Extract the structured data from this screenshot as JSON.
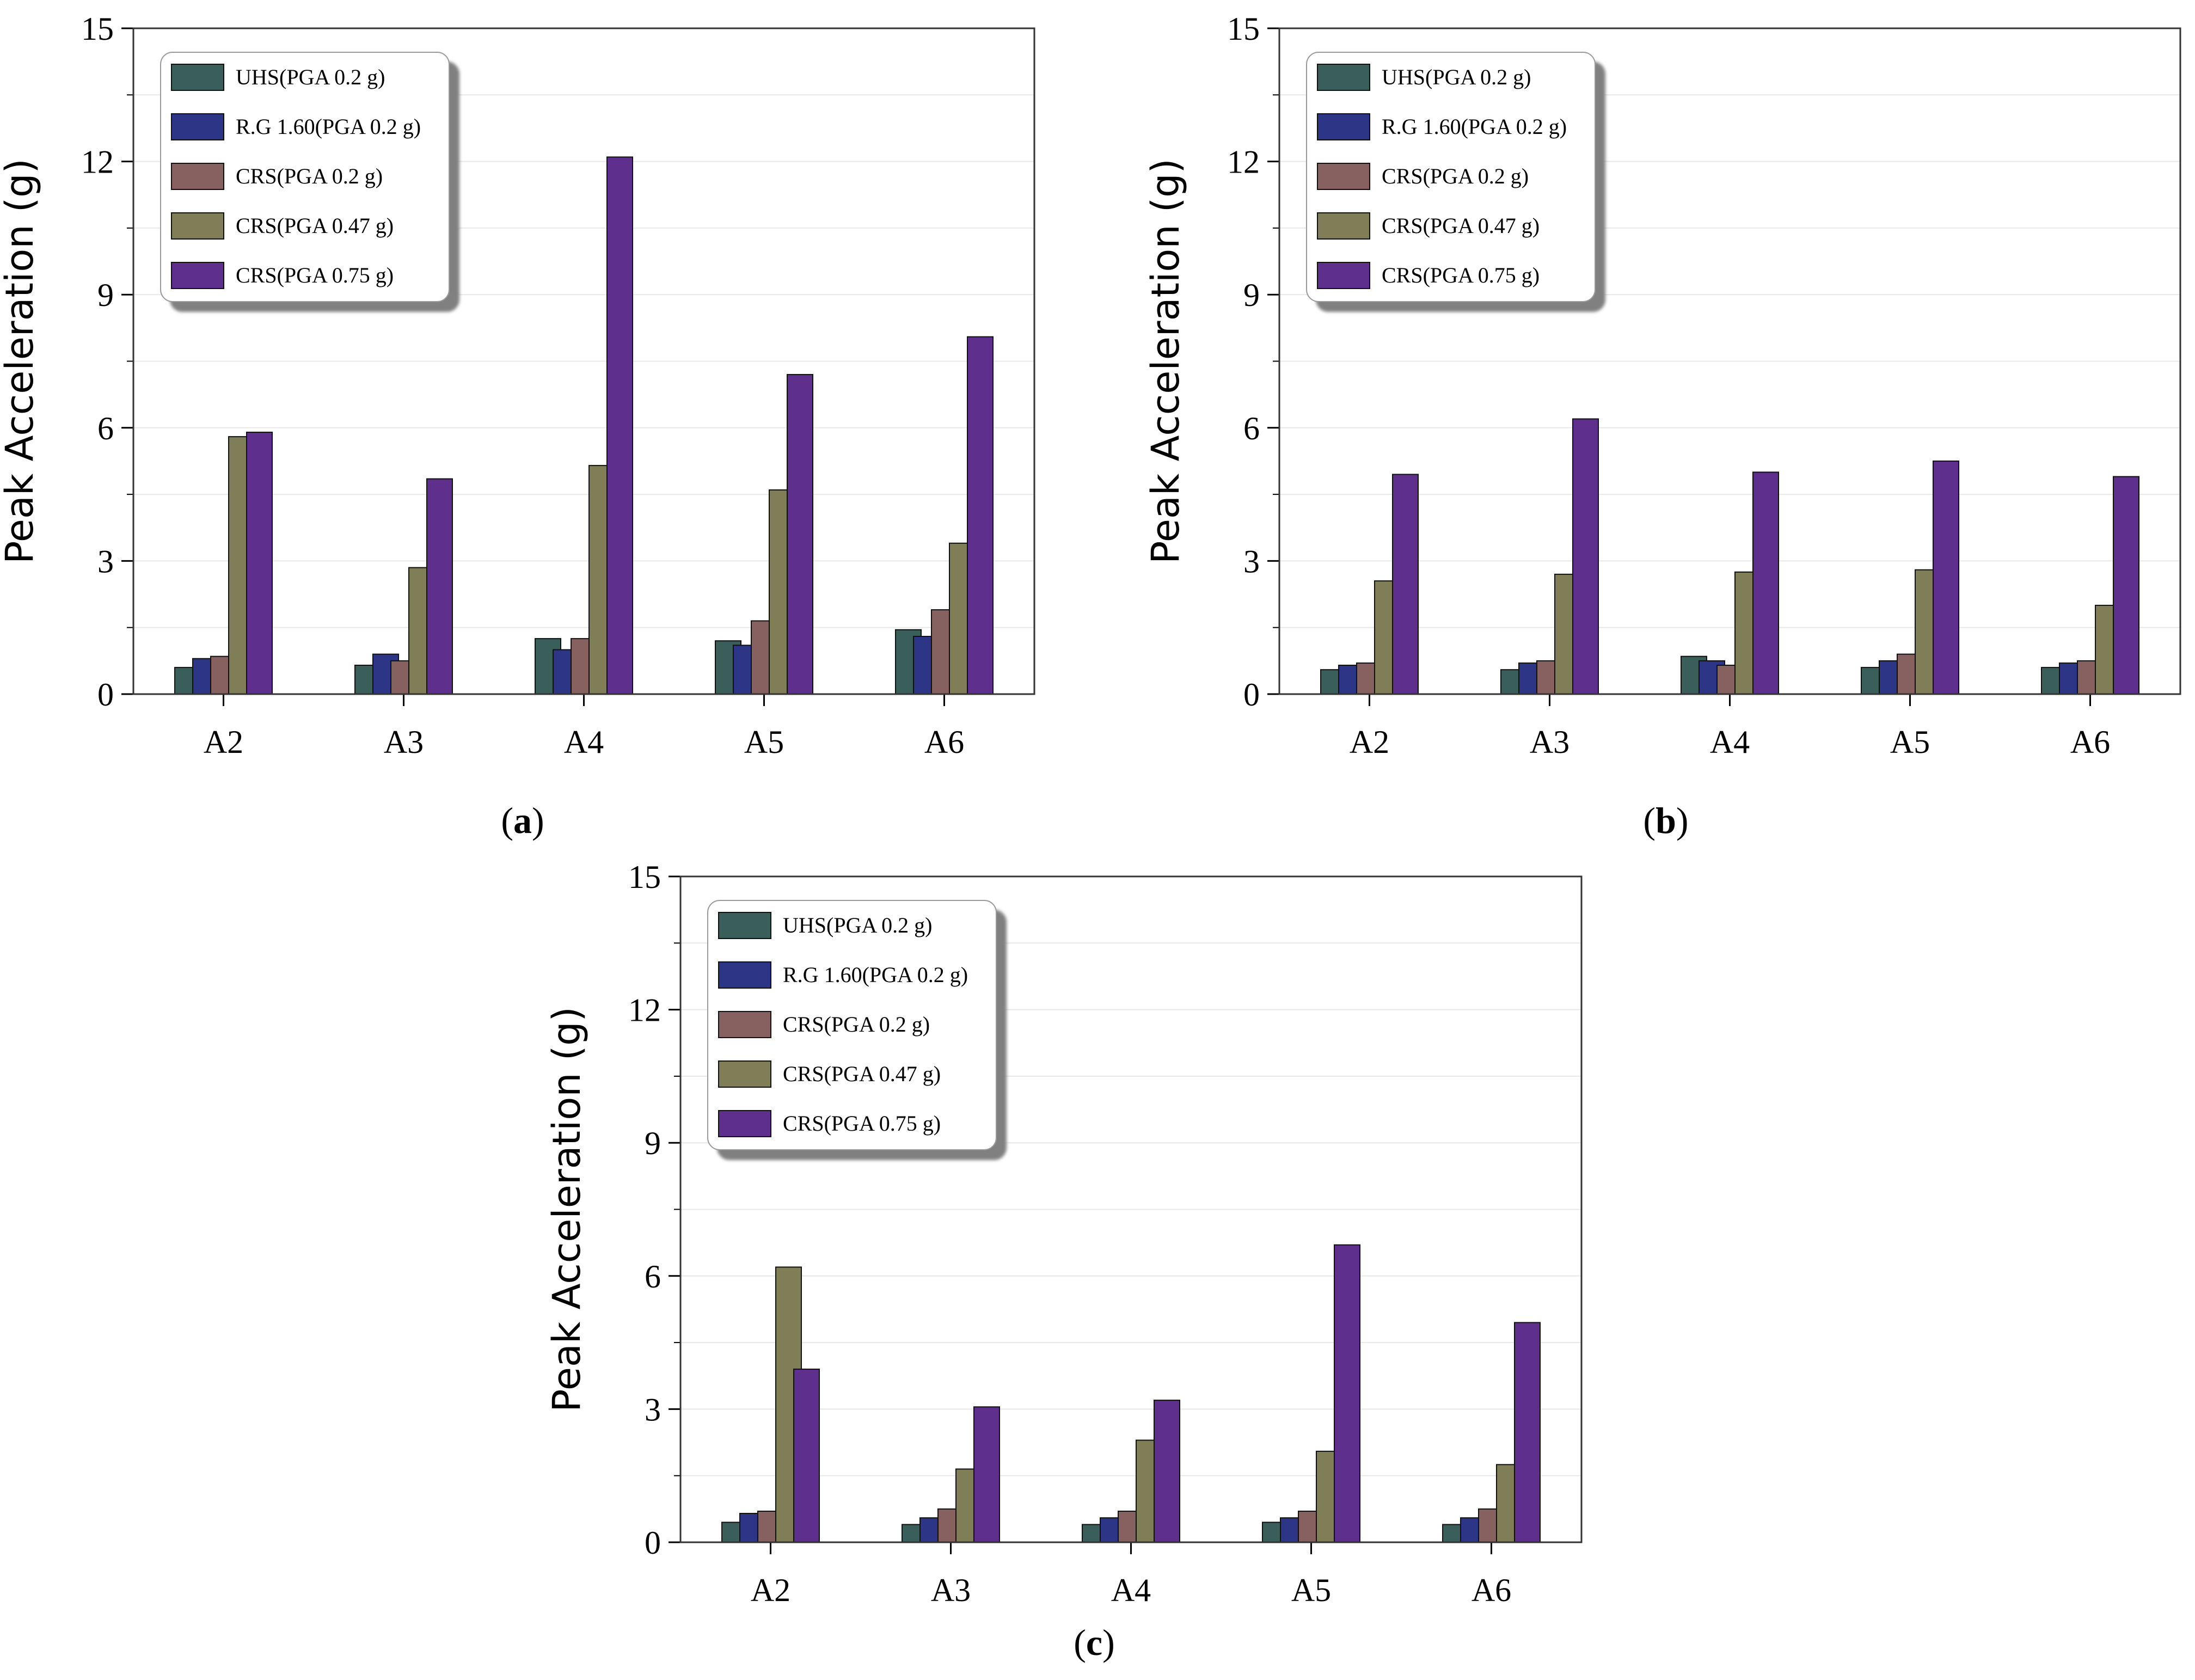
{
  "colors": {
    "series": [
      "#3a5f5b",
      "#2c3586",
      "#876060",
      "#7f7e56",
      "#5e2f8c"
    ],
    "grid": "#e8e8e8",
    "axis": "#333333"
  },
  "chart_data": [
    {
      "type": "bar",
      "panel_label": "a",
      "ylabel": "Peak Acceleration (g)",
      "xlabel": "",
      "ylim": [
        0,
        15
      ],
      "yticks": [
        "0",
        "3",
        "6",
        "9",
        "12",
        "15"
      ],
      "grid": true,
      "legend_position": "top-left",
      "categories": [
        "A2",
        "A3",
        "A4",
        "A5",
        "A6"
      ],
      "series": [
        {
          "name": "UHS(PGA 0.2 g)",
          "values": [
            0.6,
            0.65,
            1.25,
            1.2,
            1.45
          ]
        },
        {
          "name": "R.G 1.60(PGA 0.2 g)",
          "values": [
            0.8,
            0.9,
            1.0,
            1.1,
            1.3
          ]
        },
        {
          "name": "CRS(PGA 0.2 g)",
          "values": [
            0.85,
            0.75,
            1.25,
            1.65,
            1.9
          ]
        },
        {
          "name": "CRS(PGA 0.47 g)",
          "values": [
            5.8,
            2.85,
            5.15,
            4.6,
            3.4
          ]
        },
        {
          "name": "CRS(PGA 0.75 g)",
          "values": [
            5.9,
            4.85,
            12.1,
            7.2,
            8.05
          ]
        }
      ]
    },
    {
      "type": "bar",
      "panel_label": "b",
      "ylabel": "Peak Acceleration (g)",
      "xlabel": "",
      "ylim": [
        0,
        15
      ],
      "yticks": [
        "0",
        "3",
        "6",
        "9",
        "12",
        "15"
      ],
      "grid": true,
      "legend_position": "top-left",
      "categories": [
        "A2",
        "A3",
        "A4",
        "A5",
        "A6"
      ],
      "series": [
        {
          "name": "UHS(PGA 0.2 g)",
          "values": [
            0.55,
            0.55,
            0.85,
            0.6,
            0.6
          ]
        },
        {
          "name": "R.G 1.60(PGA 0.2 g)",
          "values": [
            0.65,
            0.7,
            0.75,
            0.75,
            0.7
          ]
        },
        {
          "name": "CRS(PGA 0.2 g)",
          "values": [
            0.7,
            0.75,
            0.65,
            0.9,
            0.75
          ]
        },
        {
          "name": "CRS(PGA 0.47 g)",
          "values": [
            2.55,
            2.7,
            2.75,
            2.8,
            2.0
          ]
        },
        {
          "name": "CRS(PGA 0.75 g)",
          "values": [
            4.95,
            6.2,
            5.0,
            5.25,
            4.9
          ]
        }
      ]
    },
    {
      "type": "bar",
      "panel_label": "c",
      "ylabel": "Peak Acceleration (g)",
      "xlabel": "",
      "ylim": [
        0,
        15
      ],
      "yticks": [
        "0",
        "3",
        "6",
        "9",
        "12",
        "15"
      ],
      "grid": true,
      "legend_position": "top-left",
      "categories": [
        "A2",
        "A3",
        "A4",
        "A5",
        "A6"
      ],
      "series": [
        {
          "name": "UHS(PGA 0.2 g)",
          "values": [
            0.45,
            0.4,
            0.4,
            0.45,
            0.4
          ]
        },
        {
          "name": "R.G 1.60(PGA 0.2 g)",
          "values": [
            0.65,
            0.55,
            0.55,
            0.55,
            0.55
          ]
        },
        {
          "name": "CRS(PGA 0.2 g)",
          "values": [
            0.7,
            0.75,
            0.7,
            0.7,
            0.75
          ]
        },
        {
          "name": "CRS(PGA 0.47 g)",
          "values": [
            6.2,
            1.65,
            2.3,
            2.05,
            1.75
          ]
        },
        {
          "name": "CRS(PGA 0.75 g)",
          "values": [
            3.9,
            3.05,
            3.2,
            6.7,
            4.95
          ]
        }
      ]
    }
  ]
}
